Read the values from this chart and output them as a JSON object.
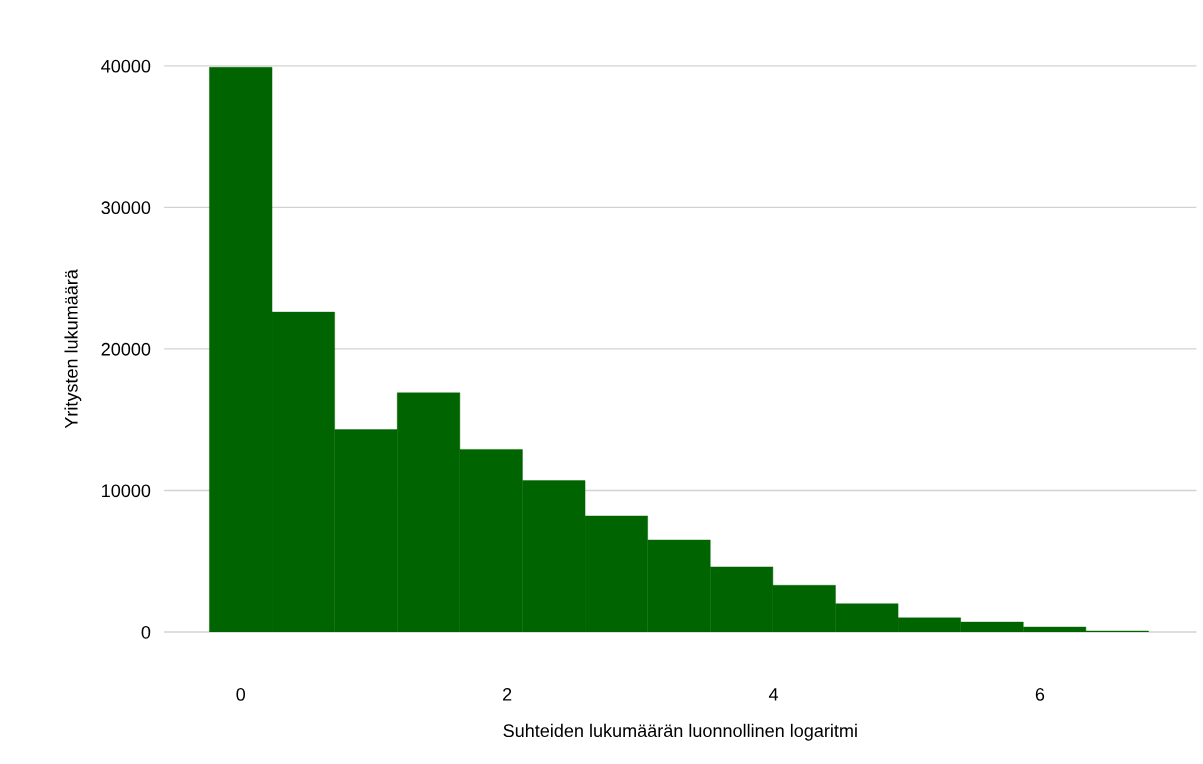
{
  "chart_data": {
    "type": "histogram",
    "xlabel": "Suhteiden lukumäärän luonnollinen logaritmi",
    "ylabel": "Yritysten lukumäärä",
    "bins": [
      -0.235,
      0.235,
      0.705,
      1.175,
      1.645,
      2.115,
      2.585,
      3.055,
      3.525,
      3.995,
      4.465,
      4.935,
      5.405,
      5.875,
      6.345,
      6.815
    ],
    "values": [
      39900,
      22600,
      14300,
      16900,
      12900,
      10700,
      8200,
      6500,
      4600,
      3300,
      2000,
      1000,
      700,
      350,
      70
    ],
    "color": "#006400",
    "xlim": [
      -0.57,
      7.17
    ],
    "xticks": [
      0,
      2,
      4,
      6
    ],
    "ylim": [
      0,
      40000
    ],
    "yticks": [
      0,
      10000,
      20000,
      30000,
      40000
    ],
    "grid": "y"
  }
}
